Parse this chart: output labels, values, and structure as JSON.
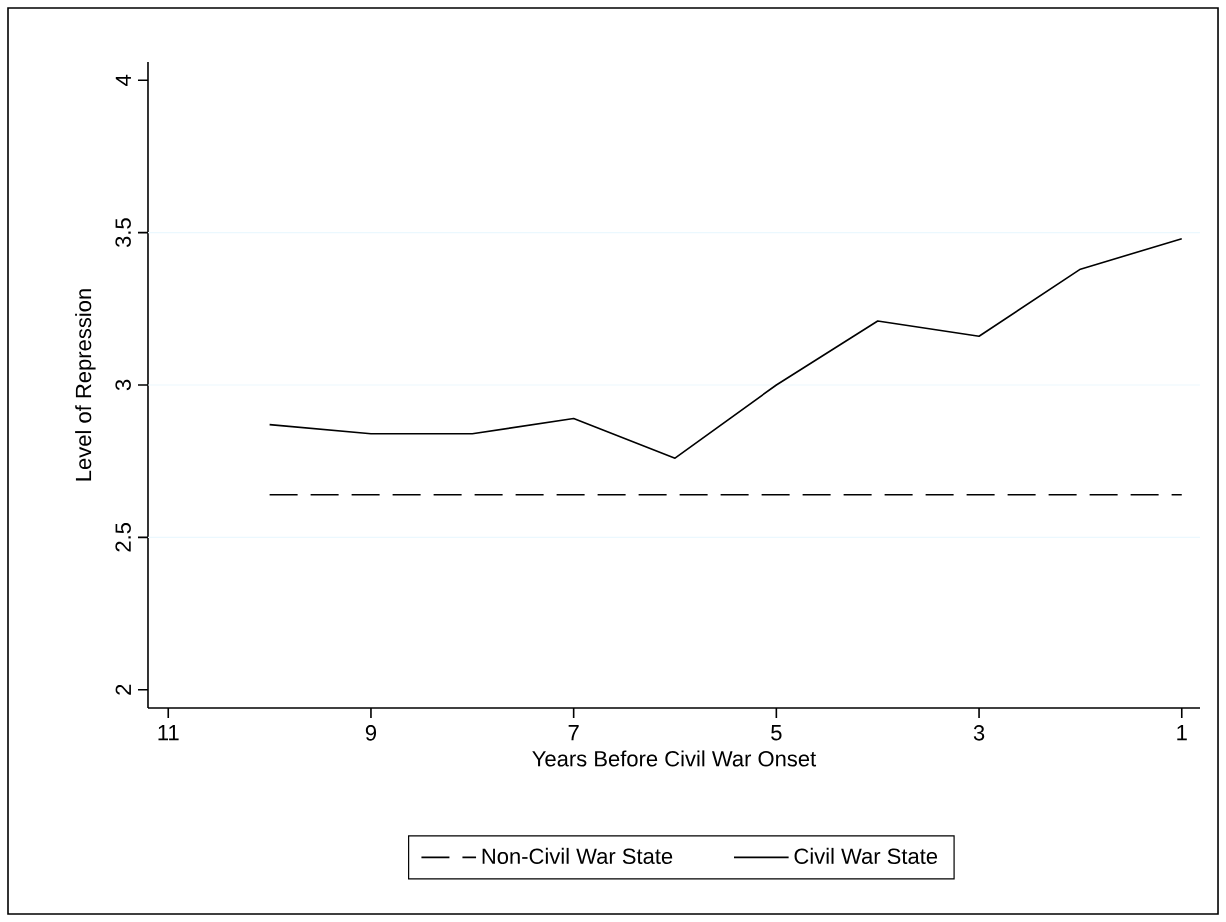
{
  "chart_data": {
    "type": "line",
    "xlabel": "Years Before Civil War Onset",
    "ylabel": "Level of Repression",
    "x": [
      10,
      9,
      8,
      7,
      6,
      5,
      4,
      3,
      2,
      1
    ],
    "series": [
      {
        "name": "Non-Civil War State",
        "color": "#000000",
        "line_style": "dashed",
        "values": [
          2.64,
          2.64,
          2.64,
          2.64,
          2.64,
          2.64,
          2.64,
          2.64,
          2.64,
          2.64
        ]
      },
      {
        "name": "Civil War State",
        "color": "#000000",
        "line_style": "solid",
        "values": [
          2.87,
          2.84,
          2.84,
          2.89,
          2.76,
          3.0,
          3.21,
          3.16,
          3.38,
          3.48
        ]
      }
    ],
    "xlim": [
      11.2,
      0.82
    ],
    "ylim": [
      1.94,
      4.06
    ],
    "xticks": [
      11,
      9,
      7,
      5,
      3,
      1
    ],
    "yticks": [
      2,
      2.5,
      3,
      3.5,
      4
    ],
    "grid": "y",
    "legend": "bottom",
    "marker": "none"
  }
}
